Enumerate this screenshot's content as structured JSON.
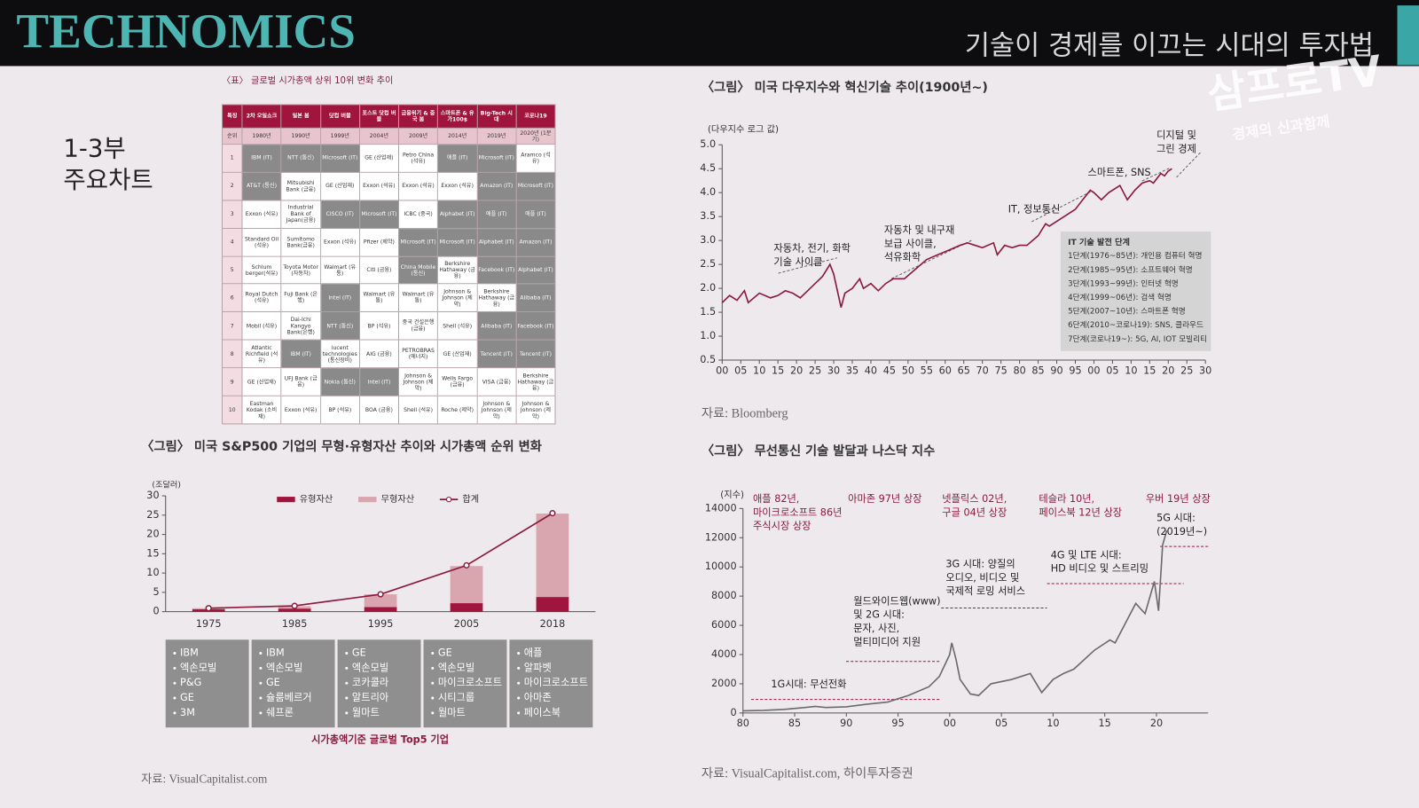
{
  "header": {
    "brand": "TECHNOMICS",
    "title": "기술이 경제를 이끄는 시대의 투자법",
    "logo": "삼프로TV",
    "logo_sub": "경제의 신과함께"
  },
  "section_label": [
    "1-3부",
    "주요차트"
  ],
  "table": {
    "caption": "〈표〉 글로벌 시가총액 상위 10위 변화 추이",
    "header": [
      "특징",
      "2차 오일쇼크",
      "일본 붐",
      "닷컴 버블",
      "포스트 닷컴 버블",
      "금융위기 & 중국 붐",
      "스마트폰 & 유가100$",
      "Big-Tech 시대",
      "코로나19"
    ],
    "subheader": [
      "순위",
      "1980년",
      "1990년",
      "1999년",
      "2004년",
      "2009년",
      "2014년",
      "2019년",
      "2020년 (1분기)"
    ],
    "rows": [
      [
        1,
        "IBM (IT)",
        "NTT (통신)",
        "Microsoft (IT)",
        "GE (산업재)",
        "Petro China (석유)",
        "애플 (IT)",
        "Microsoft (IT)",
        "Aramco (석유)"
      ],
      [
        2,
        "AT&T (통신)",
        "Mitsubishi Bank (금융)",
        "GE (산업재)",
        "Exxon (석유)",
        "Exxon (석유)",
        "Exxon (석유)",
        "Amazon (IT)",
        "Microsoft (IT)"
      ],
      [
        3,
        "Exxon (석유)",
        "Industrial Bank of Japan(금융)",
        "CISCO (IT)",
        "Microsoft (IT)",
        "ICBC (중국)",
        "Alphabet (IT)",
        "애플 (IT)",
        "애플 (IT)"
      ],
      [
        4,
        "Standard Oil (석유)",
        "Sumitomo Bank(금융)",
        "Exxon (석유)",
        "Pfizer (제약)",
        "Microsoft (IT)",
        "Microsoft (IT)",
        "Alphabet (IT)",
        "Amazon (IT)"
      ],
      [
        5,
        "Schlum berger(석유)",
        "Toyota Motor (자동차)",
        "Walmart (유통)",
        "Citi (금융)",
        "China Mobile (통신)",
        "Berkshire Hathaway (금융)",
        "Facebook (IT)",
        "Alphabet (IT)"
      ],
      [
        6,
        "Royal Dutch (석유)",
        "Fuji Bank (은행)",
        "Intel (IT)",
        "Walmart (유통)",
        "Walmart (유통)",
        "Johnson & Johnson (제약)",
        "Berkshire Hathaway (금융)",
        "Alibaba (IT)"
      ],
      [
        7,
        "Mobil (석유)",
        "Dai-Ichi Kangyo Bank(은행)",
        "NTT (통신)",
        "BP (석유)",
        "중국 건설은행 (금융)",
        "Shell (석유)",
        "Alibaba (IT)",
        "Facebook (IT)"
      ],
      [
        8,
        "Atlantic Richfield (석유)",
        "IBM (IT)",
        "lucent technologies (통신장비)",
        "AIG (금융)",
        "PETROBRAS (에너지)",
        "GE (산업재)",
        "Tencent (IT)",
        "Tencent (IT)"
      ],
      [
        9,
        "GE (산업재)",
        "UFJ Bank (금융)",
        "Nokia (통신)",
        "Intel (IT)",
        "Johnson & Johnson (제약)",
        "Wells Fargo (금융)",
        "VISA (금융)",
        "Berkshire Hathaway (금융)"
      ],
      [
        10,
        "Eastman Kodak (소비재)",
        "Exxon (석유)",
        "BP (석유)",
        "BOA (금융)",
        "Shell (석유)",
        "Roche (제약)",
        "Johnson & Johnson (제약)",
        "Johnson & Johnson (제약)"
      ]
    ]
  },
  "chart_data": [
    {
      "type": "line",
      "title": "〈그림〉 미국 다우지수와 혁신기술 추이(1900년~)",
      "y_label": "(다우지수 로그 값)",
      "source": "자료: Bloomberg",
      "x": [
        1900,
        1902,
        1904,
        1906,
        1907,
        1910,
        1913,
        1915,
        1917,
        1919,
        1921,
        1923,
        1925,
        1927,
        1929,
        1930,
        1931,
        1932,
        1933,
        1935,
        1937,
        1938,
        1940,
        1942,
        1944,
        1946,
        1949,
        1952,
        1955,
        1958,
        1961,
        1964,
        1966,
        1968,
        1970,
        1973,
        1974,
        1976,
        1978,
        1980,
        1982,
        1985,
        1987,
        1988,
        1990,
        1993,
        1995,
        1997,
        1999,
        2000,
        2002,
        2004,
        2007,
        2009,
        2011,
        2013,
        2015,
        2016,
        2018,
        2019,
        2020,
        2021
      ],
      "series": [
        {
          "name": "다우지수",
          "color": "#8b1a3c",
          "values": [
            1.7,
            1.85,
            1.75,
            1.95,
            1.7,
            1.9,
            1.8,
            1.85,
            1.95,
            1.9,
            1.8,
            1.95,
            2.1,
            2.25,
            2.5,
            2.3,
            1.95,
            1.6,
            1.9,
            2.0,
            2.2,
            2.0,
            2.1,
            1.95,
            2.1,
            2.2,
            2.2,
            2.4,
            2.6,
            2.7,
            2.8,
            2.9,
            2.95,
            2.9,
            2.85,
            2.95,
            2.7,
            2.9,
            2.85,
            2.9,
            2.9,
            3.1,
            3.35,
            3.3,
            3.4,
            3.55,
            3.65,
            3.85,
            4.05,
            4.0,
            3.85,
            4.0,
            4.15,
            3.85,
            4.05,
            4.2,
            4.25,
            4.2,
            4.4,
            4.35,
            4.45,
            4.5
          ]
        }
      ],
      "xlim": [
        1900,
        2030
      ],
      "xticks": [
        {
          "value": 1900,
          "label": "00"
        },
        {
          "value": 1905,
          "label": "05"
        },
        {
          "value": 1910,
          "label": "10"
        },
        {
          "value": 1915,
          "label": "15"
        },
        {
          "value": 1920,
          "label": "20"
        },
        {
          "value": 1925,
          "label": "25"
        },
        {
          "value": 1930,
          "label": "30"
        },
        {
          "value": 1935,
          "label": "35"
        },
        {
          "value": 1940,
          "label": "40"
        },
        {
          "value": 1945,
          "label": "45"
        },
        {
          "value": 1950,
          "label": "50"
        },
        {
          "value": 1955,
          "label": "55"
        },
        {
          "value": 1960,
          "label": "60"
        },
        {
          "value": 1965,
          "label": "65"
        },
        {
          "value": 1970,
          "label": "70"
        },
        {
          "value": 1975,
          "label": "75"
        },
        {
          "value": 1980,
          "label": "80"
        },
        {
          "value": 1985,
          "label": "85"
        },
        {
          "value": 1990,
          "label": "90"
        },
        {
          "value": 1995,
          "label": "95"
        },
        {
          "value": 2000,
          "label": "00"
        },
        {
          "value": 2005,
          "label": "05"
        },
        {
          "value": 2010,
          "label": "10"
        },
        {
          "value": 2015,
          "label": "15"
        },
        {
          "value": 2020,
          "label": "20"
        },
        {
          "value": 2025,
          "label": "25"
        },
        {
          "value": 2030,
          "label": "30"
        }
      ],
      "ylim": [
        0.5,
        5.0
      ],
      "yticks": [
        {
          "value": 0.5,
          "label": "0.5"
        },
        {
          "value": 1.0,
          "label": "1.0"
        },
        {
          "value": 1.5,
          "label": "1.5"
        },
        {
          "value": 2.0,
          "label": "2.0"
        },
        {
          "value": 2.5,
          "label": "2.5"
        },
        {
          "value": 3.0,
          "label": "3.0"
        },
        {
          "value": 3.5,
          "label": "3.5"
        },
        {
          "value": 4.0,
          "label": "4.0"
        },
        {
          "value": 4.5,
          "label": "4.5"
        },
        {
          "value": 5.0,
          "label": "5.0"
        }
      ],
      "annotations": [
        {
          "lines": [
            "자동차, 전기, 화학",
            "기술 사이클"
          ]
        },
        {
          "lines": [
            "자동차 및 내구재",
            "보급 사이클,",
            "석유화학"
          ]
        },
        {
          "lines": [
            "IT, 정보통신"
          ]
        },
        {
          "lines": [
            "스마트폰, SNS"
          ]
        },
        {
          "lines": [
            "디지털 및",
            "그린 경제"
          ]
        }
      ],
      "info_box": {
        "title": "IT 기술 발전 단계",
        "lines": [
          "1단계(1976~85년): 개인용 컴퓨터 혁명",
          "2단계(1985~95년): 소프트웨어 혁명",
          "3단계(1993~99년): 인터넷 혁명",
          "4단계(1999~06년): 검색 혁명",
          "5단계(2007~10년): 스마트폰 혁명",
          "6단계(2010~코로나19): SNS, 클라우드",
          "7단계(코로나19~): 5G, AI, IOT 모빌리티"
        ]
      }
    },
    {
      "type": "bar",
      "title": "〈그림〉 미국 S&P500 기업의 무형·유형자산 추이와 시가총액 순위 변화",
      "y_label": "(조달러)",
      "source": "자료: VisualCapitalist.com",
      "categories": [
        "1975",
        "1985",
        "1995",
        "2005",
        "2018"
      ],
      "series": [
        {
          "name": "유형자산",
          "color": "#a0153e",
          "values": [
            0.6,
            0.8,
            1.2,
            2.2,
            3.8
          ]
        },
        {
          "name": "무형자산",
          "color": "#d9a5ae",
          "values": [
            0.3,
            0.6,
            3.3,
            9.6,
            21.6
          ]
        },
        {
          "name": "합계",
          "color": "#8b1a3c",
          "type": "line",
          "values": [
            0.9,
            1.5,
            4.5,
            12,
            25.5
          ]
        }
      ],
      "ylim": [
        0,
        30
      ],
      "yticks": [
        0,
        5,
        10,
        15,
        20,
        25,
        30
      ],
      "top5": [
        [
          "IBM",
          "엑손모빌",
          "P&G",
          "GE",
          "3M"
        ],
        [
          "IBM",
          "엑손모빌",
          "GE",
          "슐룸베르거",
          "쉐프론"
        ],
        [
          "GE",
          "엑손모빌",
          "코카콜라",
          "알트리아",
          "월마트"
        ],
        [
          "GE",
          "엑손모빌",
          "마이크로소프트",
          "시티그룹",
          "월마트"
        ],
        [
          "애플",
          "알파벳",
          "마이크로소프트",
          "아마존",
          "페이스북"
        ]
      ],
      "top5_caption": "시가총액기준 글로벌 Top5 기업"
    },
    {
      "type": "line",
      "title": "〈그림〉 무선통신 기술 발달과 나스닥 지수",
      "y_label": "(지수)",
      "source": "자료: VisualCapitalist.com, 하이투자증권",
      "x": [
        1980,
        1982,
        1984,
        1986,
        1987,
        1988,
        1990,
        1992,
        1994,
        1996,
        1998,
        1999,
        2000,
        2000.2,
        2000.6,
        2001,
        2002,
        2002.8,
        2004,
        2006,
        2007.8,
        2008.9,
        2010,
        2011,
        2012,
        2014,
        2015.5,
        2016,
        2018,
        2018.9,
        2019.8,
        2020.2,
        2020.6,
        2021
      ],
      "series": [
        {
          "name": "나스닥",
          "color": "#6b6b6b",
          "values": [
            150,
            180,
            250,
            380,
            450,
            380,
            420,
            600,
            750,
            1200,
            1800,
            2500,
            4000,
            4800,
            3700,
            2300,
            1300,
            1200,
            2000,
            2300,
            2700,
            1400,
            2300,
            2700,
            3000,
            4300,
            5000,
            4800,
            7500,
            6800,
            9000,
            7000,
            11500,
            12500
          ]
        }
      ],
      "xlim": [
        1980,
        2025
      ],
      "xticks": [
        {
          "value": 1980,
          "label": "80"
        },
        {
          "value": 1985,
          "label": "85"
        },
        {
          "value": 1990,
          "label": "90"
        },
        {
          "value": 1995,
          "label": "95"
        },
        {
          "value": 2000,
          "label": "00"
        },
        {
          "value": 2005,
          "label": "05"
        },
        {
          "value": 2010,
          "label": "10"
        },
        {
          "value": 2015,
          "label": "15"
        },
        {
          "value": 2020,
          "label": "20"
        }
      ],
      "ylim": [
        0,
        14000
      ],
      "yticks": [
        0,
        2000,
        4000,
        6000,
        8000,
        10000,
        12000,
        14000
      ],
      "annotations": [
        {
          "lines": [
            "애플 82년,",
            "마이크로소프트 86년",
            "주식시장 상장"
          ]
        },
        {
          "lines": [
            "아마존 97년 상장"
          ]
        },
        {
          "lines": [
            "넷플릭스 02년,",
            "구글 04년 상장"
          ]
        },
        {
          "lines": [
            "테슬라 10년,",
            "페이스북 12년 상장"
          ]
        },
        {
          "lines": [
            "우버 19년 상장"
          ]
        },
        {
          "lines": [
            "1G시대: 무선전화"
          ]
        },
        {
          "lines": [
            "월드와이드웹(www)",
            "및 2G 시대:",
            "문자, 사진,",
            "멀티미디어 지원"
          ]
        },
        {
          "lines": [
            "3G 시대: 양질의",
            "오디오, 비디오 및",
            "국제적 로밍 서비스"
          ]
        },
        {
          "lines": [
            "4G 및 LTE 시대:",
            "HD 비디오 및 스트리밍"
          ]
        },
        {
          "lines": [
            "5G 시대:",
            "(2019년~)"
          ]
        }
      ]
    }
  ]
}
